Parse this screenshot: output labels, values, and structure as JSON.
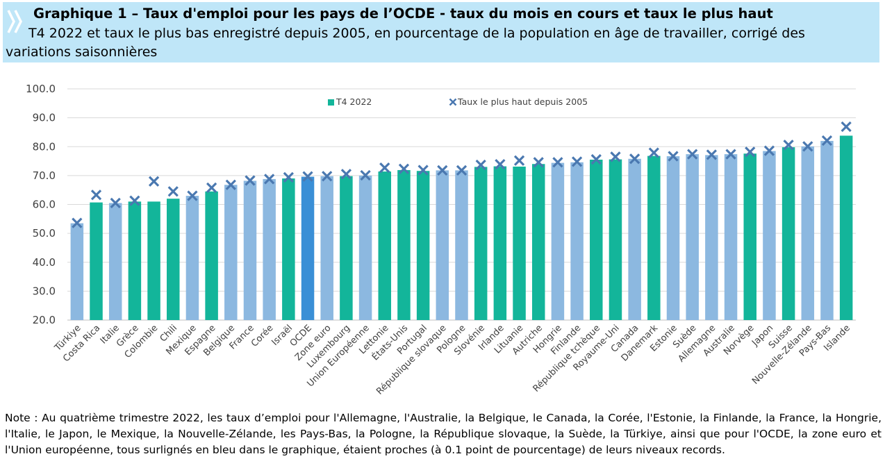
{
  "header": {
    "title": "Graphique 1 – Taux d'emploi pour les pays de l’OCDE - taux du mois en cours et taux le plus haut",
    "subtitle": "T4 2022 et taux le plus bas enregistré depuis 2005, en pourcentage de la population en âge de travailler, corrigé des variations saisonnières"
  },
  "note": "Note : Au quatrième trimestre 2022, les taux d’emploi pour l'Allemagne, l'Australie, la Belgique, le Canada, la Corée, l'Estonie, la Finlande, la France, la Hongrie, l'Italie, le Japon, le Mexique, la Nouvelle-Zélande, les Pays-Bas, la Pologne, la République slovaque, la Suède, la Türkiye, ainsi que pour l'OCDE, la zone euro et l'Union européenne, tous surlignés en bleu dans le graphique, étaient proches (à 0.1 point de pourcentage) de leurs niveaux records.",
  "colors": {
    "header_bg": "#bfe6f8",
    "bar_green": "#13b59a",
    "bar_lightblue": "#8cb8e0",
    "bar_oecd": "#3a8fd6",
    "marker": "#4a78b0",
    "grid": "#d9d9d9"
  },
  "chart_data": {
    "type": "bar",
    "legend": {
      "bar_label": "T4 2022",
      "marker_label": "Taux le plus haut depuis 2005",
      "placement": "top"
    },
    "ylim": [
      20,
      100
    ],
    "yticks": [
      "20.0",
      "30.0",
      "40.0",
      "50.0",
      "60.0",
      "70.0",
      "80.0",
      "90.0",
      "100.0"
    ],
    "categories": [
      "Türkiye",
      "Costa Rica",
      "Italie",
      "Grèce",
      "Colombie",
      "Chili",
      "Mexique",
      "Espagne",
      "Belgique",
      "France",
      "Corée",
      "Israël",
      "OCDE",
      "Zone euro",
      "Luxembourg",
      "Union Européenne",
      "Lettonie",
      "États-Unis",
      "Portugal",
      "République slovaque",
      "Pologne",
      "Slovénie",
      "Irlande",
      "Lituanie",
      "Autriche",
      "Hongrie",
      "Finlande",
      "République tchèque",
      "Royaume-Uni",
      "Canada",
      "Danemark",
      "Estonie",
      "Suède",
      "Allemagne",
      "Australie",
      "Norvège",
      "Japon",
      "Suisse",
      "Nouvelle-Zélande",
      "Pays-Bas",
      "Islande"
    ],
    "series": [
      {
        "name": "T4 2022",
        "values": [
          53.5,
          60.7,
          60.5,
          61.0,
          61.0,
          62.0,
          63.0,
          64.5,
          66.8,
          68.2,
          68.8,
          69.0,
          69.6,
          69.8,
          69.8,
          70.0,
          71.4,
          71.9,
          71.6,
          71.8,
          71.8,
          73.0,
          73.2,
          73.1,
          74.0,
          74.4,
          74.6,
          75.5,
          75.6,
          75.8,
          76.8,
          76.7,
          77.4,
          77.1,
          77.4,
          77.6,
          78.5,
          79.8,
          80.1,
          82.0,
          83.8
        ]
      },
      {
        "name": "Taux le plus haut depuis 2005",
        "values": [
          53.6,
          63.3,
          60.5,
          61.3,
          68.0,
          64.5,
          63.0,
          65.8,
          66.8,
          68.3,
          68.8,
          69.4,
          69.7,
          69.8,
          70.5,
          70.1,
          72.7,
          72.3,
          71.9,
          71.8,
          71.8,
          73.7,
          73.9,
          75.2,
          74.6,
          74.6,
          74.8,
          75.6,
          76.5,
          75.8,
          77.9,
          76.7,
          77.4,
          77.2,
          77.4,
          78.2,
          78.6,
          80.6,
          80.1,
          82.1,
          86.9
        ]
      }
    ],
    "bar_color_group": [
      "lightblue",
      "green",
      "lightblue",
      "green",
      "green",
      "green",
      "lightblue",
      "green",
      "lightblue",
      "lightblue",
      "lightblue",
      "green",
      "oecd",
      "lightblue",
      "green",
      "lightblue",
      "green",
      "green",
      "green",
      "lightblue",
      "lightblue",
      "green",
      "green",
      "green",
      "green",
      "lightblue",
      "lightblue",
      "green",
      "green",
      "lightblue",
      "green",
      "lightblue",
      "lightblue",
      "lightblue",
      "lightblue",
      "green",
      "lightblue",
      "green",
      "lightblue",
      "lightblue",
      "green"
    ]
  }
}
